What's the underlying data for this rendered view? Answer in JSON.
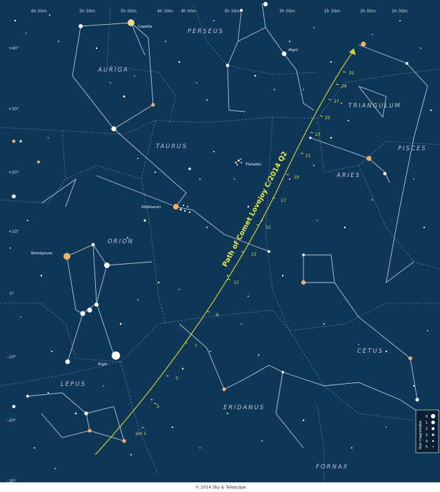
{
  "colors": {
    "sky": "#0e3656",
    "boundary": "#6f8aa5",
    "stick": "#b9c9dc",
    "star": "#ffffff",
    "orange_star": "#f2b06a",
    "comet_path": "#cfd23a"
  },
  "ra_labels": [
    "6h 00m",
    "5h 30m",
    "5h 00m",
    "4h 30m",
    "4h 00m",
    "3h 30m",
    "3h 00m",
    "2h 30m",
    "2h 00m",
    "1h 30m"
  ],
  "dec_labels": [
    "+40°",
    "+30°",
    "+20°",
    "+10°",
    "0°",
    "–10°",
    "–20°",
    "–30°"
  ],
  "constellations": {
    "perseus": "PERSEUS",
    "auriga": "AURIGA",
    "taurus": "TAURUS",
    "triangulum": "TRIANGULUM",
    "pisces": "PISCES",
    "aries": "ARIES",
    "orion": "ORION",
    "cetus": "CETUS",
    "lepus": "LEPUS",
    "eridanus": "ERIDANUS",
    "fornax": "FORNAX"
  },
  "named_stars": {
    "capella": "Capella",
    "algol": "Algol",
    "pleiades": "Pleiades",
    "aldebaran": "Aldebaran",
    "betelgeuse": "Betelgeuse",
    "rigel": "Rigel"
  },
  "comet": {
    "title": "Path of Comet Lovejoy C/2014 Q2",
    "dates": [
      "Jan 1",
      "3",
      "5",
      "7",
      "9",
      "11",
      "13",
      "15",
      "17",
      "19",
      "21",
      "23",
      "25",
      "27",
      "29",
      "31"
    ]
  },
  "legend": {
    "title": "Star magnitudes",
    "magnitudes": [
      "0",
      "1",
      "2",
      "3",
      "4",
      "5"
    ]
  },
  "copyright": "© 2014 Sky & Telescope"
}
